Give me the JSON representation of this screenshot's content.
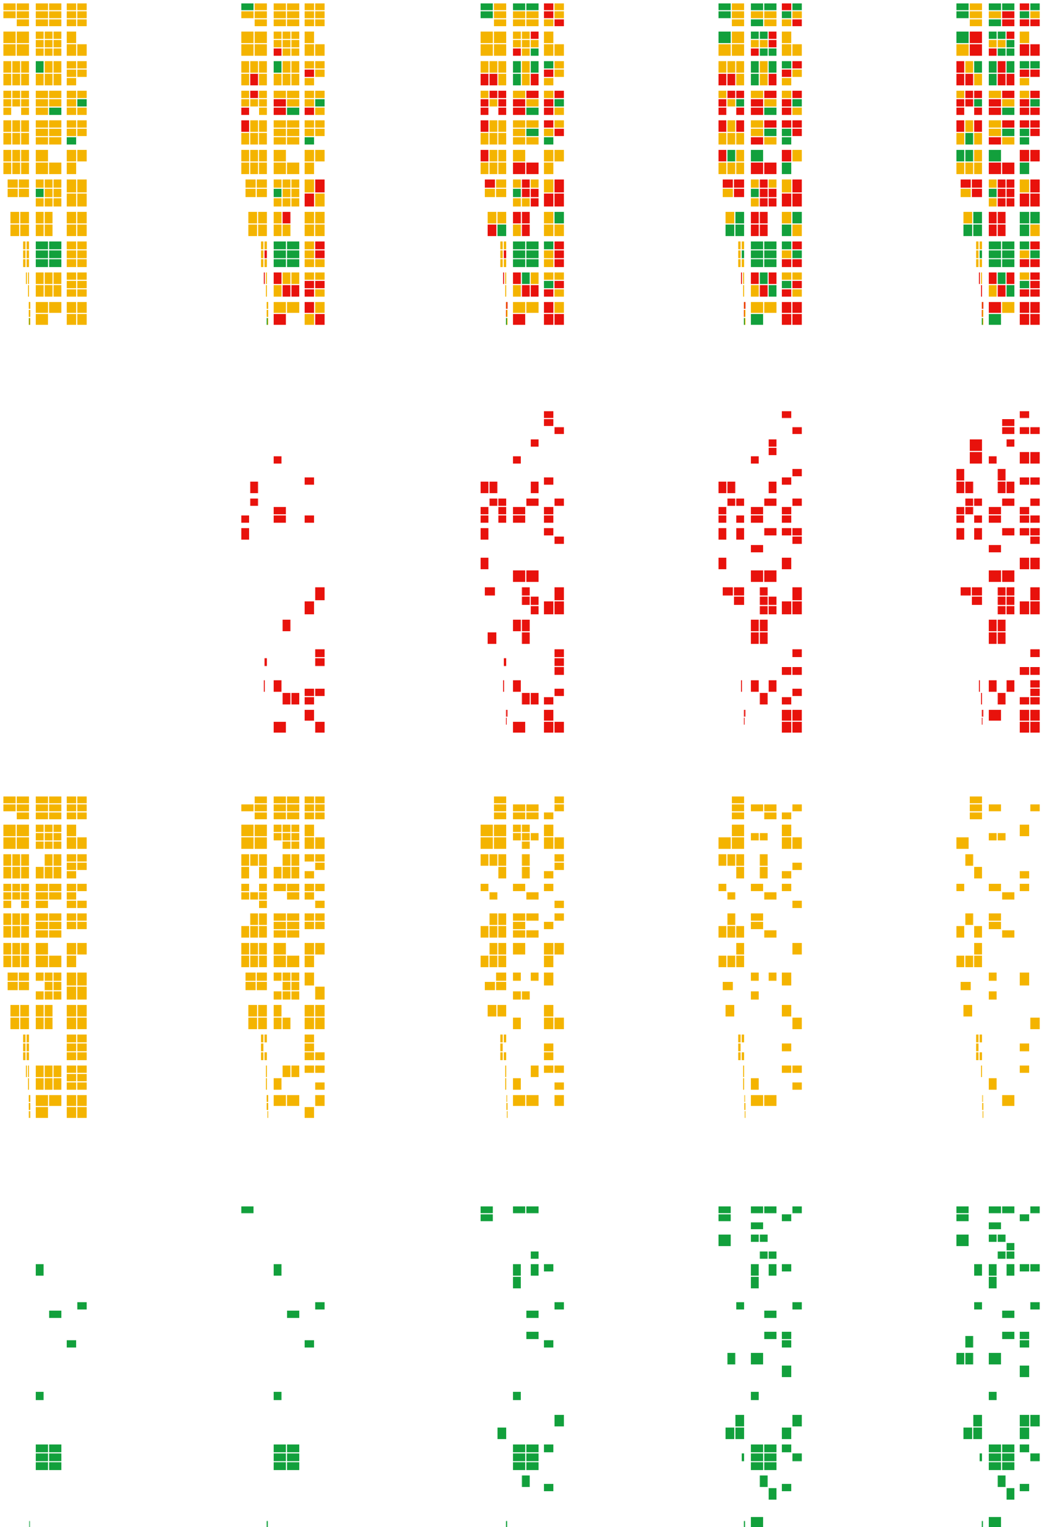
{
  "figure": {
    "columns": 5,
    "rows": [
      {
        "key": "combined",
        "layers": [
          "existing",
          "new",
          "green"
        ]
      },
      {
        "key": "new_only",
        "layers": [
          "new"
        ]
      },
      {
        "key": "existing_only",
        "layers": [
          "existing"
        ]
      },
      {
        "key": "green_only",
        "layers": [
          "green"
        ]
      }
    ],
    "colors": {
      "existing": "#f4b400",
      "new": "#e8120c",
      "green": "#12a03c",
      "background": "#ffffff"
    },
    "stage_share": {
      "new": [
        0.0,
        0.12,
        0.28,
        0.45,
        0.62
      ],
      "green": [
        0.03,
        0.05,
        0.12,
        0.22,
        0.28
      ],
      "existing_remaining": [
        1.0,
        0.88,
        0.72,
        0.52,
        0.38
      ]
    }
  }
}
